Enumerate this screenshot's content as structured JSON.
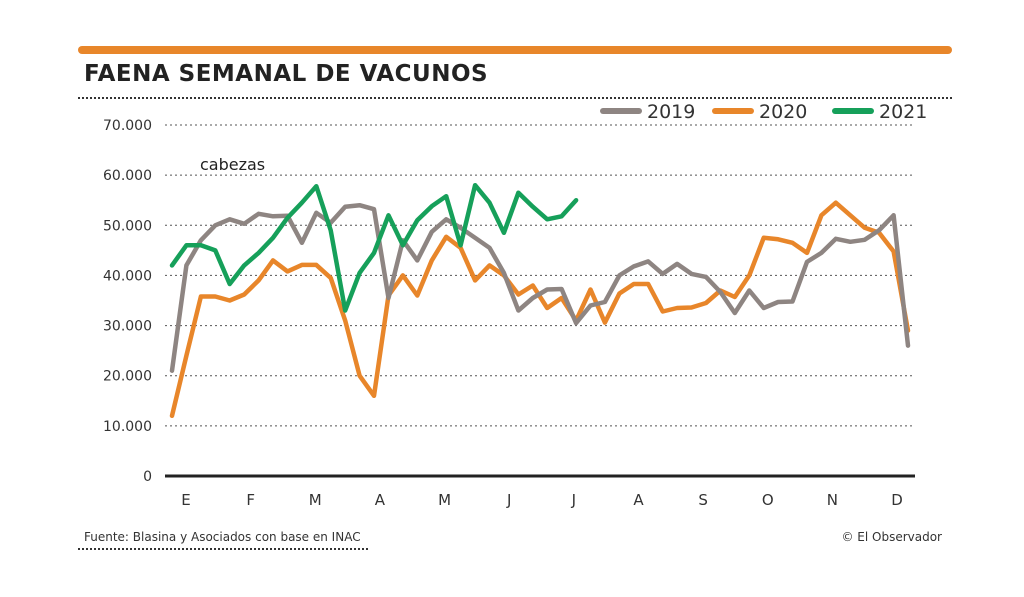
{
  "title": "FAENA SEMANAL DE VACUNOS",
  "source": "Fuente: Blasina y Asociados con base en INAC",
  "credit": "© El Observador",
  "colors": {
    "accent": "#E8862A",
    "s2019": "#8E8582",
    "s2020": "#E8862A",
    "s2021": "#16A05A",
    "grid": "#555555"
  },
  "chart_data": {
    "type": "line",
    "unit_label": "cabezas",
    "months": [
      "E",
      "F",
      "M",
      "A",
      "M",
      "J",
      "J",
      "A",
      "S",
      "O",
      "N",
      "D"
    ],
    "x_unit": "week",
    "yticks": [
      "0",
      "10.000",
      "20.000",
      "30.000",
      "40.000",
      "50.000",
      "60.000",
      "70.000"
    ],
    "ylim": [
      0,
      70000
    ],
    "grid": true,
    "legend_position": "top-right",
    "series": [
      {
        "name": "2019",
        "color": "#8E8582",
        "values": [
          21000,
          42000,
          47000,
          50000,
          51200,
          50300,
          52300,
          51800,
          51900,
          46500,
          52500,
          50500,
          53700,
          54000,
          53200,
          35500,
          47000,
          43000,
          48700,
          51200,
          49500,
          47500,
          45500,
          40500,
          33000,
          35500,
          37200,
          37300,
          30500,
          34000,
          34700,
          40000,
          41800,
          42800,
          40300,
          42300,
          40300,
          39700,
          36700,
          32500,
          37000,
          33500,
          34700,
          34800,
          42700,
          44500,
          47300,
          46700,
          47100,
          49000,
          52000,
          26000
        ]
      },
      {
        "name": "2020",
        "color": "#E8862A",
        "values": [
          12000,
          24000,
          35800,
          35800,
          35000,
          36200,
          39000,
          43000,
          40800,
          42100,
          42100,
          39500,
          31000,
          20000,
          16000,
          36000,
          40000,
          36000,
          43000,
          47700,
          45500,
          39000,
          42000,
          40000,
          36200,
          38000,
          33500,
          35500,
          31000,
          37200,
          30600,
          36400,
          38300,
          38300,
          32800,
          33500,
          33600,
          34500,
          37000,
          35700,
          40000,
          47500,
          47200,
          46500,
          44500,
          52000,
          54500,
          52000,
          49500,
          48500,
          44800,
          29000
        ]
      },
      {
        "name": "2021",
        "color": "#16A05A",
        "values": [
          42000,
          46000,
          46000,
          45000,
          38300,
          42000,
          44500,
          47500,
          51500,
          54500,
          57800,
          49000,
          33000,
          40500,
          44500,
          52000,
          46000,
          51000,
          53800,
          55800,
          46000,
          58000,
          54500,
          48500,
          56500,
          53700,
          51200,
          51800,
          55000
        ]
      }
    ]
  }
}
